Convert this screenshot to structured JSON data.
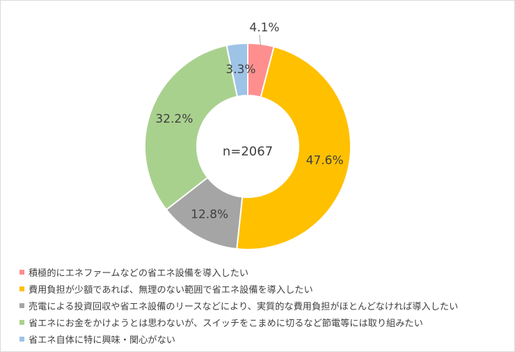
{
  "chart_data": {
    "type": "donut",
    "center_label": "n=2067",
    "slices": [
      {
        "name": "積極的にエネファームなどの省エネ設備を導入したい",
        "value": 4.1,
        "label": "4.1%",
        "color": "#FF8F8F"
      },
      {
        "name": "費用負担が少額であれば、無理のない範囲で省エネ設備を導入したい",
        "value": 47.6,
        "label": "47.6%",
        "color": "#FFC000"
      },
      {
        "name": "売電による投資回収や省エネ設備のリースなどにより、実質的な費用負担がほとんどなければ導入したい",
        "value": 12.8,
        "label": "12.8%",
        "color": "#A5A5A5"
      },
      {
        "name": "省エネにお金をかけようとは思わないが、スイッチをこまめに切るなど節電等には取り組みたい",
        "value": 32.2,
        "label": "32.2%",
        "color": "#A9D18E"
      },
      {
        "name": "省エネ自体に特に興味・関心がない",
        "value": 3.3,
        "label": "3.3%",
        "color": "#9DC3E6"
      }
    ],
    "legend_position": "bottom-left"
  }
}
